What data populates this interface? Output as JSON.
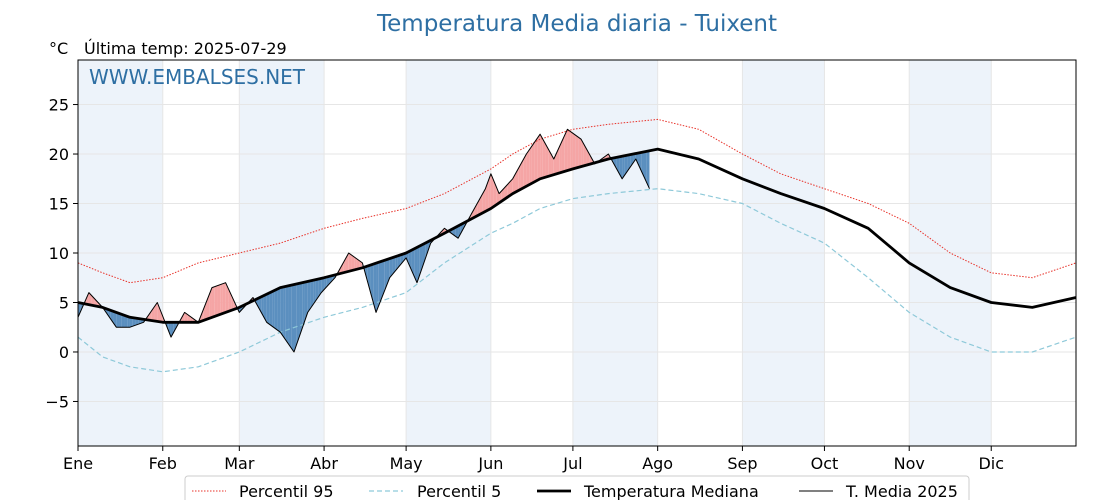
{
  "header": {
    "title": "Temperatura Media diaria - Tuixent",
    "unit": "°C",
    "last_temp": "Última temp: 2025-07-29",
    "watermark": "WWW.EMBALSES.NET"
  },
  "colors": {
    "title": "#2e6fa3",
    "p95": "#e8322a",
    "p5": "#8ec9d9",
    "median": "#000000",
    "current": "#000000",
    "above_fill": "#f5a5a5",
    "below_fill": "#5b8fbf",
    "band": "#edf3fa"
  },
  "legend": [
    "Percentil 95",
    "Percentil 5",
    "Temperatura Mediana",
    "T. Media 2025"
  ],
  "chart_data": {
    "type": "line",
    "title": "Temperatura Media diaria - Tuixent",
    "ylabel": "°C",
    "ylim": [
      -9.5,
      29.5
    ],
    "yticks": [
      -5,
      0,
      5,
      10,
      15,
      20,
      25
    ],
    "xlim": [
      1,
      366
    ],
    "grid": true,
    "months": [
      {
        "label": "Ene",
        "day": 1
      },
      {
        "label": "Feb",
        "day": 32
      },
      {
        "label": "Mar",
        "day": 60
      },
      {
        "label": "Abr",
        "day": 91
      },
      {
        "label": "May",
        "day": 121
      },
      {
        "label": "Jun",
        "day": 152
      },
      {
        "label": "Jul",
        "day": 182
      },
      {
        "label": "Ago",
        "day": 213
      },
      {
        "label": "Sep",
        "day": 244
      },
      {
        "label": "Oct",
        "day": 274
      },
      {
        "label": "Nov",
        "day": 305
      },
      {
        "label": "Dic",
        "day": 335
      }
    ],
    "series": [
      {
        "name": "Percentil 95",
        "style": "dotted",
        "x": [
          1,
          10,
          20,
          32,
          45,
          60,
          75,
          91,
          105,
          121,
          135,
          152,
          160,
          170,
          182,
          195,
          213,
          228,
          244,
          258,
          274,
          290,
          305,
          320,
          335,
          350,
          366
        ],
        "y": [
          9,
          8,
          7,
          7.5,
          9,
          10,
          11,
          12.5,
          13.5,
          14.5,
          16,
          18.5,
          20,
          21.5,
          22.5,
          23,
          23.5,
          22.5,
          20,
          18,
          16.5,
          15,
          13,
          10,
          8,
          7.5,
          9
        ]
      },
      {
        "name": "Percentil 5",
        "style": "dashed",
        "x": [
          1,
          10,
          20,
          32,
          45,
          60,
          75,
          91,
          105,
          121,
          135,
          152,
          160,
          170,
          182,
          195,
          213,
          228,
          244,
          258,
          274,
          290,
          305,
          320,
          335,
          350,
          366
        ],
        "y": [
          1.5,
          -0.5,
          -1.5,
          -2,
          -1.5,
          0,
          2,
          3.5,
          4.5,
          6,
          9,
          12,
          13,
          14.5,
          15.5,
          16,
          16.5,
          16,
          15,
          13,
          11,
          7.5,
          4,
          1.5,
          0,
          0,
          1.5
        ]
      },
      {
        "name": "Temperatura Mediana",
        "style": "solid-thick",
        "x": [
          1,
          10,
          20,
          32,
          45,
          60,
          75,
          91,
          105,
          121,
          135,
          152,
          160,
          170,
          182,
          195,
          213,
          228,
          244,
          258,
          274,
          290,
          305,
          320,
          335,
          350,
          366
        ],
        "y": [
          5,
          4.5,
          3.5,
          3,
          3,
          4.5,
          6.5,
          7.5,
          8.5,
          10,
          12,
          14.5,
          16,
          17.5,
          18.5,
          19.5,
          20.5,
          19.5,
          17.5,
          16,
          14.5,
          12.5,
          9,
          6.5,
          5,
          4.5,
          5.5
        ]
      },
      {
        "name": "T. Media 2025",
        "style": "solid-thin",
        "x": [
          1,
          5,
          10,
          15,
          20,
          25,
          30,
          35,
          40,
          45,
          50,
          55,
          60,
          65,
          70,
          75,
          80,
          85,
          90,
          95,
          100,
          105,
          110,
          115,
          121,
          125,
          130,
          135,
          140,
          145,
          150,
          152,
          155,
          160,
          165,
          170,
          175,
          180,
          185,
          190,
          195,
          200,
          205,
          210
        ],
        "y": [
          3.5,
          6,
          4.5,
          2.5,
          2.5,
          3,
          5,
          1.5,
          4,
          3,
          6.5,
          7,
          4,
          5.5,
          3,
          2,
          0,
          4,
          6,
          7.5,
          10,
          9,
          4,
          7.5,
          9.5,
          7,
          11,
          12.5,
          11.5,
          14,
          16.5,
          18,
          16,
          17.5,
          20,
          22,
          19.5,
          22.5,
          21.5,
          19,
          20,
          17.5,
          19.5,
          16.5
        ]
      }
    ]
  }
}
